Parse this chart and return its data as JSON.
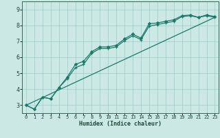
{
  "title": "",
  "xlabel": "Humidex (Indice chaleur)",
  "bg_color": "#cce8e4",
  "grid_color": "#99cccc",
  "line_color": "#1a7a6a",
  "xlim": [
    -0.5,
    23.5
  ],
  "ylim": [
    2.5,
    9.5
  ],
  "xticks": [
    0,
    1,
    2,
    3,
    4,
    5,
    6,
    7,
    8,
    9,
    10,
    11,
    12,
    13,
    14,
    15,
    16,
    17,
    18,
    19,
    20,
    21,
    22,
    23
  ],
  "yticks": [
    3,
    4,
    5,
    6,
    7,
    8,
    9
  ],
  "line1_x": [
    0,
    1,
    2,
    3,
    4,
    5,
    6,
    7,
    8,
    9,
    10,
    11,
    12,
    13,
    14,
    15,
    16,
    17,
    18,
    19,
    20,
    21,
    22,
    23
  ],
  "line1_y": [
    3.0,
    2.75,
    3.5,
    3.4,
    4.1,
    4.65,
    5.35,
    5.55,
    6.25,
    6.55,
    6.55,
    6.65,
    7.05,
    7.35,
    7.1,
    7.95,
    8.05,
    8.15,
    8.25,
    8.55,
    8.6,
    8.5,
    8.6,
    8.5
  ],
  "line2_x": [
    0,
    1,
    2,
    3,
    4,
    5,
    6,
    7,
    8,
    9,
    10,
    11,
    12,
    13,
    14,
    15,
    16,
    17,
    18,
    19,
    20,
    21,
    22,
    23
  ],
  "line2_y": [
    3.0,
    2.75,
    3.5,
    3.4,
    4.1,
    4.75,
    5.55,
    5.75,
    6.35,
    6.65,
    6.65,
    6.75,
    7.15,
    7.45,
    7.2,
    8.1,
    8.15,
    8.25,
    8.35,
    8.6,
    8.65,
    8.5,
    8.65,
    8.55
  ],
  "line3_x": [
    0,
    23
  ],
  "line3_y": [
    3.0,
    8.5
  ]
}
